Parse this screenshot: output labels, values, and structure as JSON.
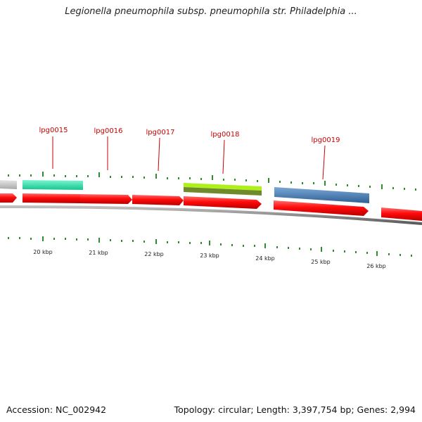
{
  "title": "Legionella pneumophila subsp. pneumophila str. Philadelphia ...",
  "footer": {
    "accession": "Accession: NC_002942",
    "summary": "Topology: circular; Length: 3,397,754 bp; Genes: 2,994"
  },
  "colors": {
    "cds": "#ff0a0a",
    "backbone": "#7a7a7a",
    "tick": "#2e8b2e",
    "label": "#cc0000",
    "gene_grey": "#c8c8c8",
    "gene_teal": "#2de3a8",
    "gene_lime": "#aef01a",
    "gene_olive": "#6f8a2a",
    "gene_blue": "#4a80b8"
  },
  "scale_labels": [
    "20 kbp",
    "21 kbp",
    "22 kbp",
    "23 kbp",
    "24 kbp",
    "25 kbp",
    "26 kbp"
  ],
  "gene_labels": [
    "lpg0015",
    "lpg0016",
    "lpg0017",
    "lpg0018",
    "lpg0019"
  ]
}
